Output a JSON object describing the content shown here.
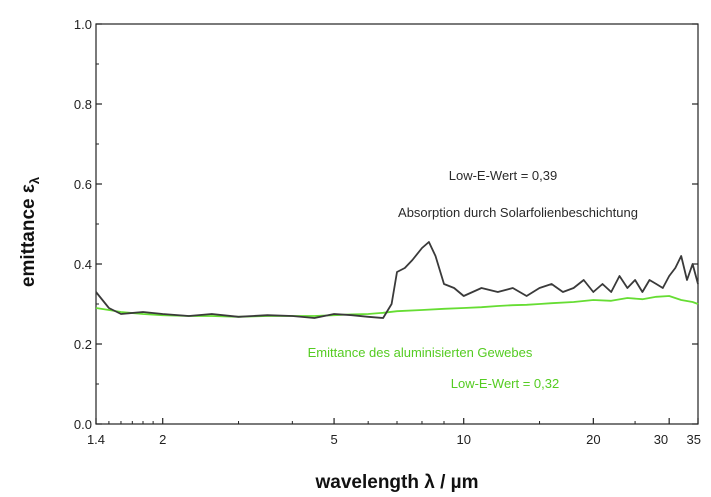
{
  "chart_data": {
    "type": "line",
    "xlabel": "wavelength λ / µm",
    "ylabel": "emittance ε",
    "ylabel_sub": "λ",
    "xscale": "log",
    "xlim": [
      1.4,
      35
    ],
    "ylim": [
      0.0,
      1.0
    ],
    "x_ticks": [
      1.4,
      2,
      5,
      10,
      20,
      30,
      35
    ],
    "x_tick_labels": [
      "1.4",
      "2",
      "5",
      "10",
      "20",
      "30",
      "35"
    ],
    "y_ticks": [
      0.0,
      0.2,
      0.4,
      0.6,
      0.8,
      1.0
    ],
    "y_tick_labels": [
      "0.0",
      "0.2",
      "0.4",
      "0.6",
      "0.8",
      "1.0"
    ],
    "grid": false,
    "series": [
      {
        "color": "#3a3a3a",
        "x": [
          1.4,
          1.5,
          1.6,
          1.8,
          2.0,
          2.3,
          2.6,
          3.0,
          3.5,
          4.0,
          4.5,
          5.0,
          5.5,
          6.0,
          6.5,
          6.8,
          7.0,
          7.3,
          7.6,
          8.0,
          8.3,
          8.6,
          9.0,
          9.5,
          10.0,
          11,
          12,
          13,
          14,
          15,
          16,
          17,
          18,
          19,
          20,
          21,
          22,
          23,
          24,
          25,
          26,
          27,
          28,
          29,
          30,
          31,
          32,
          33,
          34,
          35
        ],
        "y": [
          0.33,
          0.29,
          0.275,
          0.28,
          0.275,
          0.27,
          0.275,
          0.268,
          0.272,
          0.27,
          0.265,
          0.275,
          0.272,
          0.268,
          0.265,
          0.3,
          0.38,
          0.39,
          0.41,
          0.44,
          0.455,
          0.42,
          0.35,
          0.34,
          0.32,
          0.34,
          0.33,
          0.34,
          0.32,
          0.34,
          0.35,
          0.33,
          0.34,
          0.36,
          0.33,
          0.35,
          0.33,
          0.37,
          0.34,
          0.36,
          0.33,
          0.36,
          0.35,
          0.34,
          0.37,
          0.39,
          0.42,
          0.36,
          0.4,
          0.35
        ]
      },
      {
        "color": "#66dd33",
        "x": [
          1.4,
          1.5,
          1.6,
          1.8,
          2.0,
          2.3,
          2.6,
          3.0,
          3.5,
          4.0,
          4.5,
          5.0,
          5.5,
          6.0,
          6.5,
          7.0,
          8.0,
          9.0,
          10,
          11,
          12,
          13,
          14,
          15,
          16,
          18,
          20,
          22,
          24,
          26,
          28,
          30,
          32,
          34,
          35
        ],
        "y": [
          0.29,
          0.285,
          0.28,
          0.275,
          0.272,
          0.27,
          0.27,
          0.268,
          0.27,
          0.27,
          0.27,
          0.272,
          0.274,
          0.275,
          0.278,
          0.282,
          0.285,
          0.288,
          0.29,
          0.292,
          0.295,
          0.297,
          0.298,
          0.3,
          0.302,
          0.305,
          0.31,
          0.308,
          0.315,
          0.312,
          0.318,
          0.32,
          0.31,
          0.305,
          0.3
        ]
      }
    ],
    "annotations": [
      {
        "id": "black-value",
        "text": "Low-E-Wert = 0,39",
        "color": "#2a2a2a"
      },
      {
        "id": "black-desc",
        "text": "Absorption durch Solarfolienbeschichtung",
        "color": "#2a2a2a"
      },
      {
        "id": "green-desc",
        "text": "Emittance des aluminisierten Gewebes",
        "color": "#55cc22"
      },
      {
        "id": "green-value",
        "text": "Low-E-Wert = 0,32",
        "color": "#55cc22"
      }
    ]
  }
}
